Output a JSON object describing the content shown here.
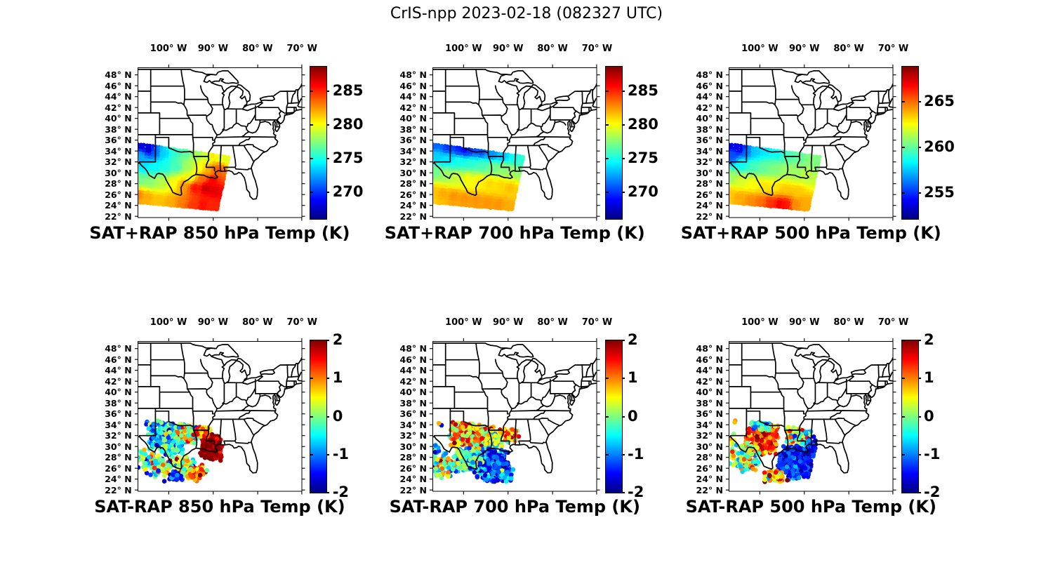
{
  "figure_title": "CrIS-npp 2023-02-18 (082327 UTC)",
  "colors": {
    "background": "#ffffff",
    "map_lines": "#000000",
    "text": "#000000",
    "frame": "#000000"
  },
  "chart_data": {
    "type": "map-scatter-grid",
    "title": "CrIS-npp 2023-02-18 (082327 UTC)",
    "colormap": "jet",
    "grid": {
      "rows": 2,
      "cols": 3
    },
    "axes": {
      "lon_range": [
        -107,
        -70.3
      ],
      "lat_range": [
        21.7,
        49.38
      ],
      "lon_ticks": [
        {
          "value": -100,
          "label": "100° W"
        },
        {
          "value": -90,
          "label": "90° W"
        },
        {
          "value": -80,
          "label": "80° W"
        },
        {
          "value": -70,
          "label": "70° W"
        }
      ],
      "lat_ticks": [
        {
          "value": 48,
          "label": "48° N"
        },
        {
          "value": 46,
          "label": "46° N"
        },
        {
          "value": 44,
          "label": "44° N"
        },
        {
          "value": 42,
          "label": "42° N"
        },
        {
          "value": 40,
          "label": "40° N"
        },
        {
          "value": 38,
          "label": "38° N"
        },
        {
          "value": 36,
          "label": "36° N"
        },
        {
          "value": 34,
          "label": "34° N"
        },
        {
          "value": 32,
          "label": "32° N"
        },
        {
          "value": 30,
          "label": "30° N"
        },
        {
          "value": 28,
          "label": "28° N"
        },
        {
          "value": 26,
          "label": "26° N"
        },
        {
          "value": 24,
          "label": "24° N"
        },
        {
          "value": 22,
          "label": "22° N"
        }
      ]
    },
    "swath_quad": [
      [
        -107.6,
        35.3
      ],
      [
        -86.6,
        32.9
      ],
      [
        -89.3,
        23.4
      ],
      [
        -107.6,
        24.8
      ]
    ],
    "panels": [
      {
        "id": "sat-plus-rap-850",
        "title": "SAT+RAP 850 hPa Temp (K)",
        "row": 0,
        "col": 0,
        "layer": "swath",
        "seed": 101,
        "colorbar": {
          "min": 266.0,
          "max": 288.6,
          "ticks": [
            285,
            280,
            275,
            270
          ],
          "tick_labels": [
            "285",
            "280",
            "275",
            "270"
          ]
        },
        "field_points": [
          [
            -106,
            35.0,
            268
          ],
          [
            -104.5,
            34.2,
            267.5
          ],
          [
            -103,
            33.6,
            271
          ],
          [
            -106,
            33,
            272.5
          ],
          [
            -101,
            33.5,
            273.5
          ],
          [
            -98.5,
            33.9,
            275.5
          ],
          [
            -96,
            33.6,
            276.5
          ],
          [
            -93.5,
            33.2,
            278
          ],
          [
            -91,
            32.8,
            278.5
          ],
          [
            -88.5,
            32.8,
            279.5
          ],
          [
            -87,
            32.5,
            279.5
          ],
          [
            -90.4,
            33.0,
            281
          ],
          [
            -105.5,
            31,
            274
          ],
          [
            -103,
            31,
            274.5
          ],
          [
            -100.5,
            31,
            275
          ],
          [
            -98,
            31,
            276
          ],
          [
            -95.5,
            31,
            278
          ],
          [
            -93,
            30.6,
            280
          ],
          [
            -90.8,
            30.3,
            282
          ],
          [
            -89.3,
            30.2,
            283.5
          ],
          [
            -88.8,
            30.5,
            284
          ],
          [
            -106.5,
            28.5,
            277
          ],
          [
            -104,
            28.2,
            277.5
          ],
          [
            -101.5,
            28,
            278.5
          ],
          [
            -99,
            27.8,
            280
          ],
          [
            -96.5,
            27.5,
            282.5
          ],
          [
            -94,
            27,
            285.5
          ],
          [
            -91.5,
            27,
            287
          ],
          [
            -89.5,
            26.5,
            286.5
          ],
          [
            -95,
            29,
            279.5
          ],
          [
            -92.5,
            28.8,
            283.5
          ],
          [
            -90,
            28.5,
            286
          ],
          [
            -106.8,
            25.8,
            283
          ],
          [
            -104.5,
            25.3,
            282
          ],
          [
            -102,
            24.8,
            281.5
          ],
          [
            -99.5,
            24.5,
            282
          ],
          [
            -97,
            24.3,
            283
          ],
          [
            -94.5,
            24,
            284.5
          ],
          [
            -92,
            23.9,
            285.5
          ],
          [
            -90.2,
            23.8,
            285
          ]
        ]
      },
      {
        "id": "sat-plus-rap-700",
        "title": "SAT+RAP 700 hPa Temp (K)",
        "row": 0,
        "col": 1,
        "layer": "swath",
        "seed": 102,
        "colorbar": {
          "min": 266.0,
          "max": 288.6,
          "ticks": [
            285,
            280,
            275,
            270
          ],
          "tick_labels": [
            "285",
            "280",
            "275",
            "270"
          ]
        },
        "field_points": [
          [
            -106,
            35.1,
            271
          ],
          [
            -103.5,
            34.6,
            270
          ],
          [
            -101,
            34.3,
            269.5
          ],
          [
            -99.5,
            34.3,
            268.5
          ],
          [
            -98.5,
            34.0,
            270
          ],
          [
            -96,
            33.7,
            270.5
          ],
          [
            -93.5,
            33.2,
            272
          ],
          [
            -91,
            32.9,
            273
          ],
          [
            -88.5,
            32.6,
            274.5
          ],
          [
            -87.2,
            32.4,
            275.5
          ],
          [
            -106,
            32.8,
            273.5
          ],
          [
            -103.5,
            32.3,
            274
          ],
          [
            -101,
            32,
            275
          ],
          [
            -98.5,
            31.7,
            275.5
          ],
          [
            -96,
            31.4,
            276
          ],
          [
            -93.5,
            31,
            277
          ],
          [
            -91,
            30.7,
            277.5
          ],
          [
            -89,
            30.3,
            278
          ],
          [
            -106.3,
            30,
            277
          ],
          [
            -104,
            29.5,
            278
          ],
          [
            -101.5,
            29,
            279
          ],
          [
            -99,
            28.7,
            280
          ],
          [
            -96.5,
            28.3,
            280.5
          ],
          [
            -94,
            27.9,
            281
          ],
          [
            -91.5,
            27.5,
            281
          ],
          [
            -89.5,
            27,
            281.5
          ],
          [
            -106.8,
            26.5,
            281.5
          ],
          [
            -104.5,
            26,
            282
          ],
          [
            -102,
            25.5,
            282.5
          ],
          [
            -99.5,
            25,
            282.5
          ],
          [
            -97,
            24.7,
            282.5
          ],
          [
            -94.5,
            24.3,
            282.5
          ],
          [
            -92,
            24,
            282.5
          ],
          [
            -90,
            23.7,
            282
          ]
        ]
      },
      {
        "id": "sat-plus-rap-500",
        "title": "SAT+RAP 500 hPa Temp (K)",
        "row": 0,
        "col": 2,
        "layer": "swath",
        "seed": 103,
        "colorbar": {
          "min": 252.1,
          "max": 268.9,
          "ticks": [
            265,
            260,
            255
          ],
          "tick_labels": [
            "265",
            "260",
            "255"
          ]
        },
        "field_points": [
          [
            -106.5,
            35,
            254
          ],
          [
            -104.5,
            34.3,
            253.5
          ],
          [
            -106,
            33,
            255.5
          ],
          [
            -103,
            33.8,
            256
          ],
          [
            -101,
            33.8,
            257.5
          ],
          [
            -98.5,
            33.9,
            258
          ],
          [
            -96,
            33.5,
            258.5
          ],
          [
            -93.5,
            33,
            259.5
          ],
          [
            -91,
            32.7,
            260
          ],
          [
            -88.5,
            32.4,
            260.5
          ],
          [
            -87.5,
            32.0,
            260.5
          ],
          [
            -104,
            31.5,
            258.5
          ],
          [
            -101.5,
            31,
            259.5
          ],
          [
            -99,
            30.8,
            260
          ],
          [
            -96.5,
            30.5,
            260.5
          ],
          [
            -94,
            30.2,
            261
          ],
          [
            -91.5,
            29.8,
            261
          ],
          [
            -89.3,
            29.5,
            261.5
          ],
          [
            -106.3,
            29,
            261
          ],
          [
            -104,
            28.3,
            262
          ],
          [
            -101.5,
            27.8,
            262.5
          ],
          [
            -99,
            27.3,
            263
          ],
          [
            -96.5,
            27,
            263
          ],
          [
            -94,
            26.6,
            263.5
          ],
          [
            -91.5,
            26.2,
            263.5
          ],
          [
            -106.8,
            26,
            263.5
          ],
          [
            -104.5,
            25.3,
            264
          ],
          [
            -102,
            24.8,
            264.5
          ],
          [
            -99.8,
            24.5,
            265
          ],
          [
            -97.5,
            24.3,
            266
          ],
          [
            -95.3,
            24.1,
            267
          ],
          [
            -93.8,
            24.0,
            266.5
          ],
          [
            -91.8,
            23.8,
            264.5
          ],
          [
            -89.8,
            23.8,
            264
          ]
        ]
      },
      {
        "id": "sat-minus-rap-850",
        "title": "SAT-RAP 850 hPa Temp (K)",
        "row": 1,
        "col": 0,
        "layer": "scatter",
        "seed": 11,
        "colorbar": {
          "min": -2,
          "max": 2,
          "ticks": [
            2,
            1,
            0,
            -1,
            -2
          ],
          "tick_labels": [
            "2",
            "1",
            "0",
            "-1",
            "-2"
          ]
        },
        "clusters": [
          [
            -104.9,
            34.4,
            0.6,
            0.4,
            3,
            -1.3,
            0.8
          ],
          [
            -100.4,
            31.8,
            3.2,
            2.6,
            300,
            -0.7,
            1.0
          ],
          [
            -95.6,
            32.7,
            2.6,
            1.8,
            190,
            0.3,
            1.2
          ],
          [
            -90.3,
            29.6,
            1.9,
            1.7,
            180,
            1.9,
            0.35
          ],
          [
            -92.4,
            33.0,
            1.6,
            1.1,
            70,
            1.1,
            0.8
          ],
          [
            -97.0,
            25.9,
            2.8,
            1.7,
            130,
            0.4,
            1.3
          ],
          [
            -102.9,
            26.8,
            3.0,
            1.9,
            90,
            0.1,
            1.2
          ],
          [
            -106.2,
            28.4,
            0.9,
            1.3,
            12,
            -0.3,
            1.2
          ],
          [
            -93.6,
            25.3,
            1.6,
            1.1,
            60,
            1.0,
            0.9
          ],
          [
            -99.2,
            24.6,
            1.9,
            0.8,
            30,
            -1.4,
            0.8
          ]
        ]
      },
      {
        "id": "sat-minus-rap-700",
        "title": "SAT-RAP 700 hPa Temp (K)",
        "row": 1,
        "col": 1,
        "layer": "scatter",
        "seed": 22,
        "colorbar": {
          "min": -2,
          "max": 2,
          "ticks": [
            2,
            1,
            0,
            -1,
            -2
          ],
          "tick_labels": [
            "2",
            "1",
            "0",
            "-1",
            "-2"
          ]
        },
        "clusters": [
          [
            -105.3,
            34.4,
            0.6,
            0.4,
            3,
            -0.4,
            1.4
          ],
          [
            -99.6,
            32.3,
            3.0,
            2.2,
            260,
            0.8,
            1.0
          ],
          [
            -94.6,
            31.6,
            2.6,
            2.0,
            200,
            0.5,
            1.2
          ],
          [
            -89.3,
            32.3,
            1.5,
            1.2,
            70,
            0.9,
            0.9
          ],
          [
            -93.6,
            26.6,
            3.3,
            2.4,
            330,
            -1.2,
            0.75
          ],
          [
            -99.1,
            27.6,
            2.6,
            1.8,
            140,
            -0.3,
            1.1
          ],
          [
            -104.6,
            26.6,
            2.2,
            1.8,
            80,
            0.2,
            1.3
          ],
          [
            -106.4,
            29.4,
            0.8,
            1.1,
            10,
            -0.5,
            1.0
          ],
          [
            -91.1,
            24.6,
            1.9,
            0.9,
            50,
            -0.8,
            1.0
          ]
        ]
      },
      {
        "id": "sat-minus-rap-500",
        "title": "SAT-RAP 500 hPa Temp (K)",
        "row": 1,
        "col": 2,
        "layer": "scatter",
        "seed": 33,
        "colorbar": {
          "min": -2,
          "max": 2,
          "ticks": [
            2,
            1,
            0,
            -1,
            -2
          ],
          "tick_labels": [
            "2",
            "1",
            "0",
            "-1",
            "-2"
          ]
        },
        "clusters": [
          [
            -105.9,
            35.0,
            0.9,
            0.5,
            5,
            0.9,
            0.8
          ],
          [
            -99.4,
            31.4,
            2.7,
            2.2,
            280,
            1.4,
            0.7
          ],
          [
            -99.6,
            34.0,
            2.3,
            0.8,
            60,
            -0.6,
            0.9
          ],
          [
            -91.6,
            32.0,
            2.3,
            1.5,
            120,
            0.2,
            1.1
          ],
          [
            -91.9,
            27.1,
            3.2,
            2.4,
            340,
            -1.4,
            0.6
          ],
          [
            -103.4,
            27.9,
            2.6,
            2.2,
            110,
            0.1,
            1.2
          ],
          [
            -96.3,
            24.5,
            2.3,
            0.9,
            60,
            0.8,
            1.2
          ],
          [
            -106.3,
            30.4,
            0.8,
            1.5,
            10,
            0.3,
            1.2
          ],
          [
            -88.0,
            30.1,
            1.0,
            1.6,
            40,
            -1.5,
            0.5
          ]
        ]
      }
    ]
  }
}
